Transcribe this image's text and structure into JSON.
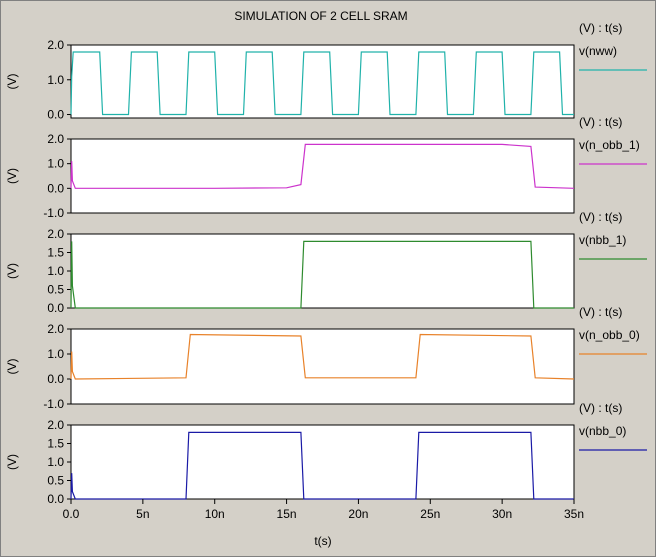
{
  "chart_data": {
    "type": "line",
    "title": "SIMULATION OF 2 CELL SRAM",
    "xlabel": "t(s)",
    "xlim": [
      0,
      35
    ],
    "x_ticks": [
      0,
      5,
      10,
      15,
      20,
      25,
      30,
      35
    ],
    "x_tick_labels": [
      "0.0",
      "5n",
      "10n",
      "15n",
      "20n",
      "25n",
      "30n",
      "35n"
    ],
    "grid": false,
    "legend_placement": "right",
    "panels": [
      {
        "id": "nww",
        "ylabel": "(V)",
        "header": "(V) : t(s)",
        "series_name": "v(nww)",
        "color": "#20b2aa",
        "ylim": [
          -0.1,
          2.0
        ],
        "y_ticks": [
          0.0,
          1.0,
          2.0
        ],
        "y_tick_labels": [
          "0.0",
          "1.0",
          "2.0"
        ],
        "x": [
          0,
          0.05,
          0.15,
          0.3,
          2.0,
          2.2,
          4.0,
          4.2,
          6.0,
          6.2,
          8.0,
          8.2,
          10.0,
          10.2,
          12.0,
          12.2,
          14.0,
          14.2,
          16.0,
          16.2,
          18.0,
          18.2,
          20.0,
          20.2,
          22.0,
          22.2,
          24.0,
          24.2,
          26.0,
          26.2,
          28.0,
          28.2,
          30.0,
          30.2,
          32.0,
          32.2,
          34.0,
          34.2,
          35.0
        ],
        "y": [
          0.0,
          1.1,
          1.8,
          1.8,
          1.8,
          0.0,
          0.0,
          1.8,
          1.8,
          0.0,
          0.0,
          1.8,
          1.8,
          0.0,
          0.0,
          1.8,
          1.8,
          0.0,
          0.0,
          1.8,
          1.8,
          0.0,
          0.0,
          1.8,
          1.8,
          0.0,
          0.0,
          1.8,
          1.8,
          0.0,
          0.0,
          1.8,
          1.8,
          0.0,
          0.0,
          1.8,
          1.8,
          0.0,
          0.0
        ]
      },
      {
        "id": "n_obb_1",
        "ylabel": "(V)",
        "header": "(V) : t(s)",
        "series_name": "v(n_obb_1)",
        "color": "#cc33cc",
        "ylim": [
          -1.0,
          2.0
        ],
        "y_ticks": [
          -1.0,
          0.0,
          1.0,
          2.0
        ],
        "y_tick_labels": [
          "-1.0",
          "0.0",
          "1.0",
          "2.0"
        ],
        "x": [
          0,
          0.05,
          0.1,
          0.3,
          5,
          10,
          15,
          16.0,
          16.3,
          20,
          25,
          30,
          32.0,
          32.3,
          35.0
        ],
        "y": [
          0.0,
          1.1,
          0.3,
          0.0,
          0.0,
          0.0,
          0.02,
          0.15,
          1.78,
          1.78,
          1.78,
          1.78,
          1.7,
          0.05,
          0.0
        ]
      },
      {
        "id": "nbb_1",
        "ylabel": "(V)",
        "header": "(V) : t(s)",
        "series_name": "v(nbb_1)",
        "color": "#2e8b2e",
        "ylim": [
          0.0,
          2.0
        ],
        "y_ticks": [
          0.0,
          0.5,
          1.0,
          1.5,
          2.0
        ],
        "y_tick_labels": [
          "0.0",
          "0.5",
          "1.0",
          "1.5",
          "2.0"
        ],
        "x": [
          0,
          0.05,
          0.1,
          0.3,
          16.0,
          16.2,
          32.0,
          32.2,
          35.0
        ],
        "y": [
          0.0,
          1.8,
          0.6,
          0.0,
          0.0,
          1.8,
          1.8,
          0.0,
          0.0
        ]
      },
      {
        "id": "n_obb_0",
        "ylabel": "(V)",
        "header": "(V) : t(s)",
        "series_name": "v(n_obb_0)",
        "color": "#e8822a",
        "ylim": [
          -1.0,
          2.0
        ],
        "y_ticks": [
          -1.0,
          0.0,
          1.0,
          2.0
        ],
        "y_tick_labels": [
          "-1.0",
          "0.0",
          "1.0",
          "2.0"
        ],
        "x": [
          0,
          0.05,
          0.1,
          0.3,
          8.0,
          8.3,
          16.0,
          16.3,
          24.0,
          24.3,
          32.0,
          32.3,
          35.0
        ],
        "y": [
          0.0,
          1.1,
          0.3,
          0.0,
          0.05,
          1.78,
          1.72,
          0.05,
          0.05,
          1.78,
          1.72,
          0.05,
          0.0
        ]
      },
      {
        "id": "nbb_0",
        "ylabel": "(V)",
        "header": "(V) : t(s)",
        "series_name": "v(nbb_0)",
        "color": "#1a1aa6",
        "ylim": [
          0.0,
          2.0
        ],
        "y_ticks": [
          0.0,
          0.5,
          1.0,
          1.5,
          2.0
        ],
        "y_tick_labels": [
          "0.0",
          "0.5",
          "1.0",
          "1.5",
          "2.0"
        ],
        "x": [
          0,
          0.05,
          0.1,
          0.3,
          8.0,
          8.2,
          16.0,
          16.2,
          24.0,
          24.2,
          32.0,
          32.2,
          35.0
        ],
        "y": [
          0.0,
          0.7,
          0.2,
          0.0,
          0.0,
          1.8,
          1.8,
          0.0,
          0.0,
          1.8,
          1.8,
          0.0,
          0.0
        ]
      }
    ]
  }
}
